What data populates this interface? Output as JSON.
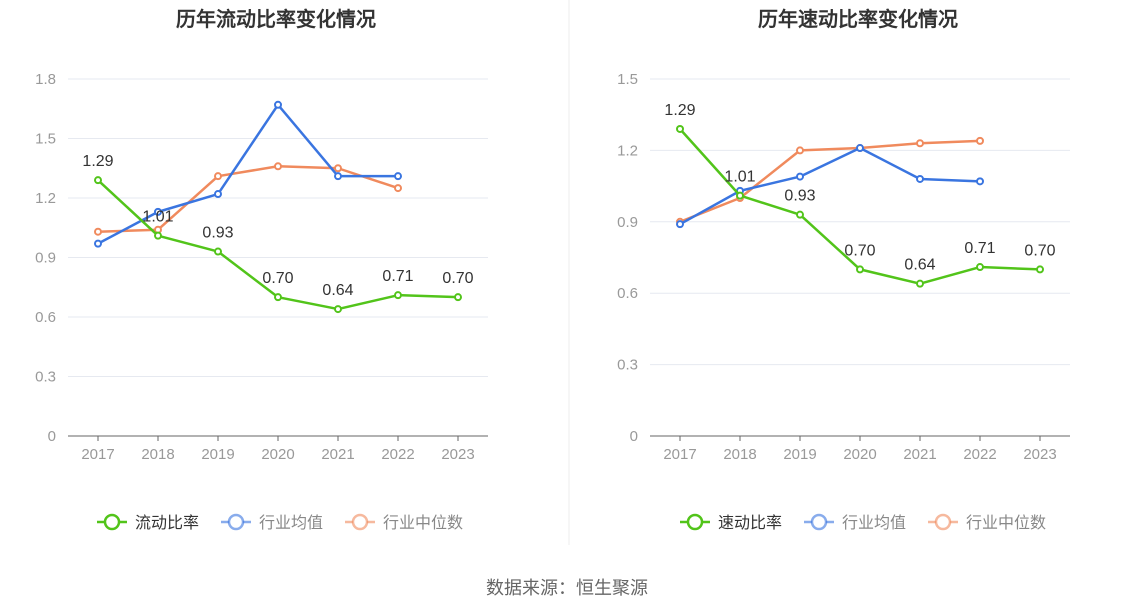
{
  "source_text": "数据来源：恒生聚源",
  "colors": {
    "company": "#52c41a",
    "avg": "#3a75e0",
    "median": "#f08a5d",
    "grid": "#e6e9f0",
    "axis_text": "#999999",
    "title": "#333333",
    "label": "#333333"
  },
  "chart_data": [
    {
      "type": "line",
      "title": "历年流动比率变化情况",
      "categories": [
        "2017",
        "2018",
        "2019",
        "2020",
        "2021",
        "2022",
        "2023"
      ],
      "ylim": [
        0,
        1.8
      ],
      "yticks": [
        "0",
        "0.3",
        "0.6",
        "0.9",
        "1.2",
        "1.5",
        "1.8"
      ],
      "grid": true,
      "legend_position": "bottom",
      "series": [
        {
          "name": "流动比率",
          "color_key": "company",
          "values": [
            1.29,
            1.01,
            0.93,
            0.7,
            0.64,
            0.71,
            0.7
          ],
          "labels": [
            "1.29",
            "1.01",
            "0.93",
            "0.70",
            "0.64",
            "0.71",
            "0.70"
          ]
        },
        {
          "name": "行业均值",
          "color_key": "avg",
          "values": [
            0.97,
            1.13,
            1.22,
            1.67,
            1.31,
            1.31,
            null
          ]
        },
        {
          "name": "行业中位数",
          "color_key": "median",
          "values": [
            1.03,
            1.04,
            1.31,
            1.36,
            1.35,
            1.25,
            null
          ]
        }
      ]
    },
    {
      "type": "line",
      "title": "历年速动比率变化情况",
      "categories": [
        "2017",
        "2018",
        "2019",
        "2020",
        "2021",
        "2022",
        "2023"
      ],
      "ylim": [
        0,
        1.5
      ],
      "yticks": [
        "0",
        "0.3",
        "0.6",
        "0.9",
        "1.2",
        "1.5"
      ],
      "grid": true,
      "legend_position": "bottom",
      "series": [
        {
          "name": "速动比率",
          "color_key": "company",
          "values": [
            1.29,
            1.01,
            0.93,
            0.7,
            0.64,
            0.71,
            0.7
          ],
          "labels": [
            "1.29",
            "1.01",
            "0.93",
            "0.70",
            "0.64",
            "0.71",
            "0.70"
          ]
        },
        {
          "name": "行业均值",
          "color_key": "avg",
          "values": [
            0.89,
            1.03,
            1.09,
            1.21,
            1.08,
            1.07,
            null
          ]
        },
        {
          "name": "行业中位数",
          "color_key": "median",
          "values": [
            0.9,
            1.0,
            1.2,
            1.21,
            1.23,
            1.24,
            null
          ]
        }
      ]
    }
  ]
}
